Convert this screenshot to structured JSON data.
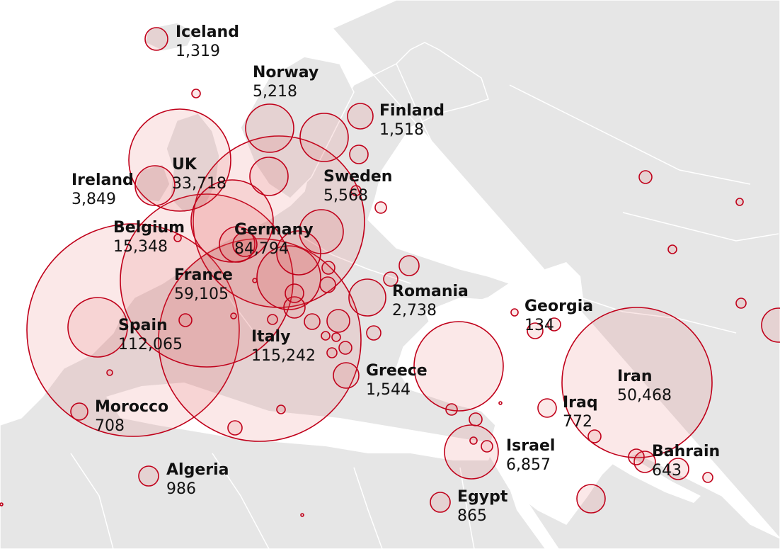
{
  "colors": {
    "sea": "#ffffff",
    "land": "#e6e6e6",
    "border": "#ffffff",
    "bubble_stroke": "#c0001a",
    "bubble_fill": "rgba(222,80,80,0.13)"
  },
  "countries": [
    {
      "id": "iceland",
      "name": "Iceland",
      "value": "1,319",
      "cases": 1319
    },
    {
      "id": "norway",
      "name": "Norway",
      "value": "5,218",
      "cases": 5218
    },
    {
      "id": "finland",
      "name": "Finland",
      "value": "1,518",
      "cases": 1518
    },
    {
      "id": "uk",
      "name": "UK",
      "value": "33,718",
      "cases": 33718
    },
    {
      "id": "ireland",
      "name": "Ireland",
      "value": "3,849",
      "cases": 3849
    },
    {
      "id": "sweden",
      "name": "Sweden",
      "value": "5,568",
      "cases": 5568
    },
    {
      "id": "belgium",
      "name": "Belgium",
      "value": "15,348",
      "cases": 15348
    },
    {
      "id": "germany",
      "name": "Germany",
      "value": "84,794",
      "cases": 84794
    },
    {
      "id": "france",
      "name": "France",
      "value": "59,105",
      "cases": 59105
    },
    {
      "id": "romania",
      "name": "Romania",
      "value": "2,738",
      "cases": 2738
    },
    {
      "id": "georgia",
      "name": "Georgia",
      "value": "134",
      "cases": 134
    },
    {
      "id": "spain",
      "name": "Spain",
      "value": "112,065",
      "cases": 112065
    },
    {
      "id": "italy",
      "name": "Italy",
      "value": "115,242",
      "cases": 115242
    },
    {
      "id": "iran",
      "name": "Iran",
      "value": "50,468",
      "cases": 50468
    },
    {
      "id": "greece",
      "name": "Greece",
      "value": "1,544",
      "cases": 1544
    },
    {
      "id": "iraq",
      "name": "Iraq",
      "value": "772",
      "cases": 772
    },
    {
      "id": "morocco",
      "name": "Morocco",
      "value": "708",
      "cases": 708
    },
    {
      "id": "israel",
      "name": "Israel",
      "value": "6,857",
      "cases": 6857
    },
    {
      "id": "bahrain",
      "name": "Bahrain",
      "value": "643",
      "cases": 643
    },
    {
      "id": "algeria",
      "name": "Algeria",
      "value": "986",
      "cases": 986
    },
    {
      "id": "egypt",
      "name": "Egypt",
      "value": "865",
      "cases": 865
    }
  ]
}
